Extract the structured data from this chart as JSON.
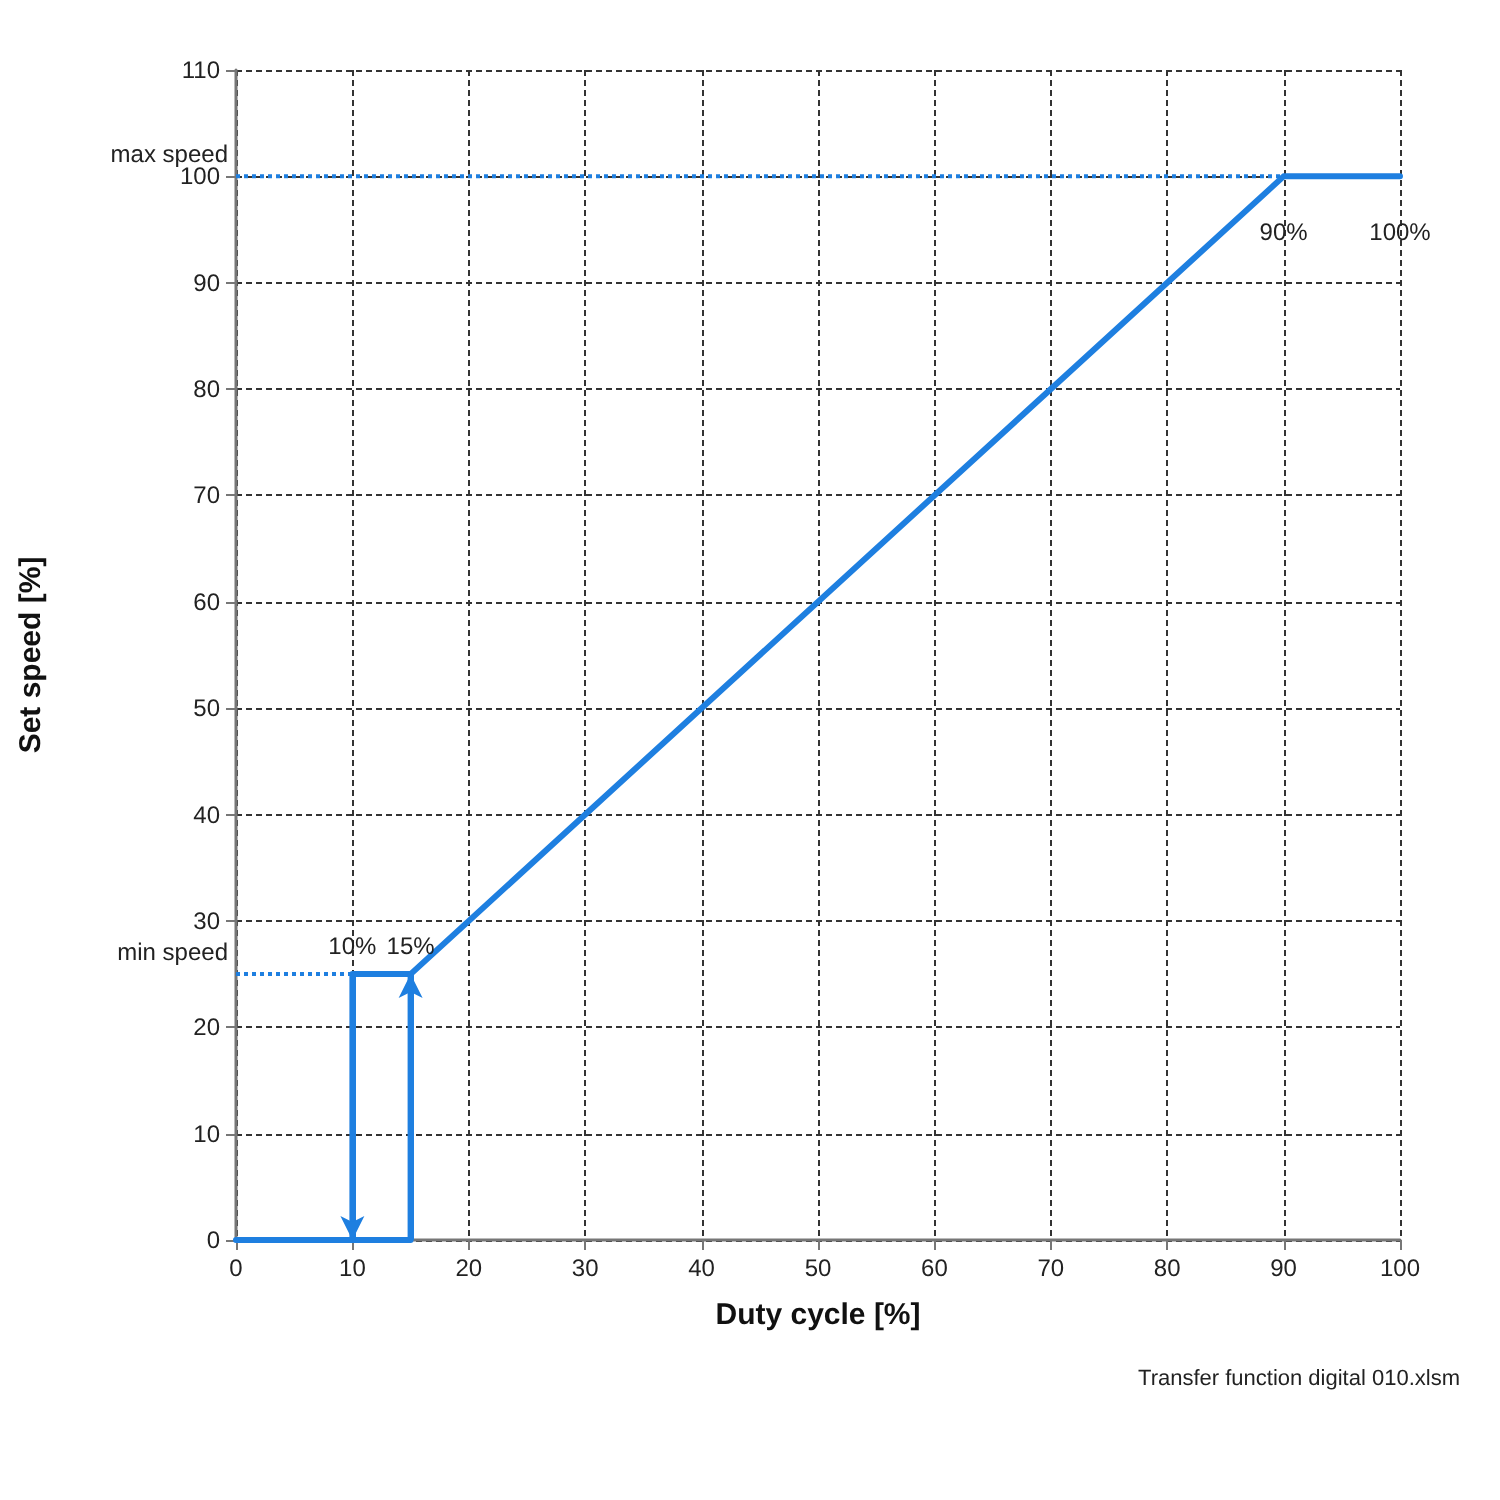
{
  "chart_data": {
    "type": "line",
    "xlabel": "Duty cycle [%]",
    "ylabel": "Set speed [%]",
    "series": [
      {
        "color": "#1e7fe0",
        "x": [
          0,
          15,
          15,
          10,
          10
        ],
        "values": [
          0,
          0,
          25,
          25,
          0
        ]
      },
      {
        "color": "#1e7fe0",
        "x": [
          15,
          90,
          100
        ],
        "values": [
          25,
          100,
          100
        ]
      }
    ],
    "xlim": [
      0,
      100
    ],
    "xticks": [
      0,
      10,
      20,
      30,
      40,
      50,
      60,
      70,
      80,
      90,
      100
    ],
    "ylim": [
      0,
      110
    ],
    "yticks": [
      0,
      10,
      20,
      30,
      40,
      50,
      60,
      70,
      80,
      90,
      100,
      110
    ],
    "grid": true,
    "marker": "none",
    "line_style": "solid",
    "ref_lines": [
      {
        "axis": "y",
        "value": 100,
        "label": "max speed",
        "color": "#1e7fe0",
        "line_style": "dotted"
      },
      {
        "axis": "y",
        "value": 25,
        "label": "min speed",
        "color": "#1e7fe0",
        "line_style": "dotted"
      }
    ],
    "annotations": [
      {
        "text": "10%",
        "x": 10,
        "y": 25
      },
      {
        "text": "15%",
        "x": 15,
        "y": 25
      },
      {
        "text": "90%",
        "x": 90,
        "y": 100
      },
      {
        "text": "100%",
        "x": 100,
        "y": 100
      },
      "Transfer function digital 010.xlsm"
    ]
  }
}
